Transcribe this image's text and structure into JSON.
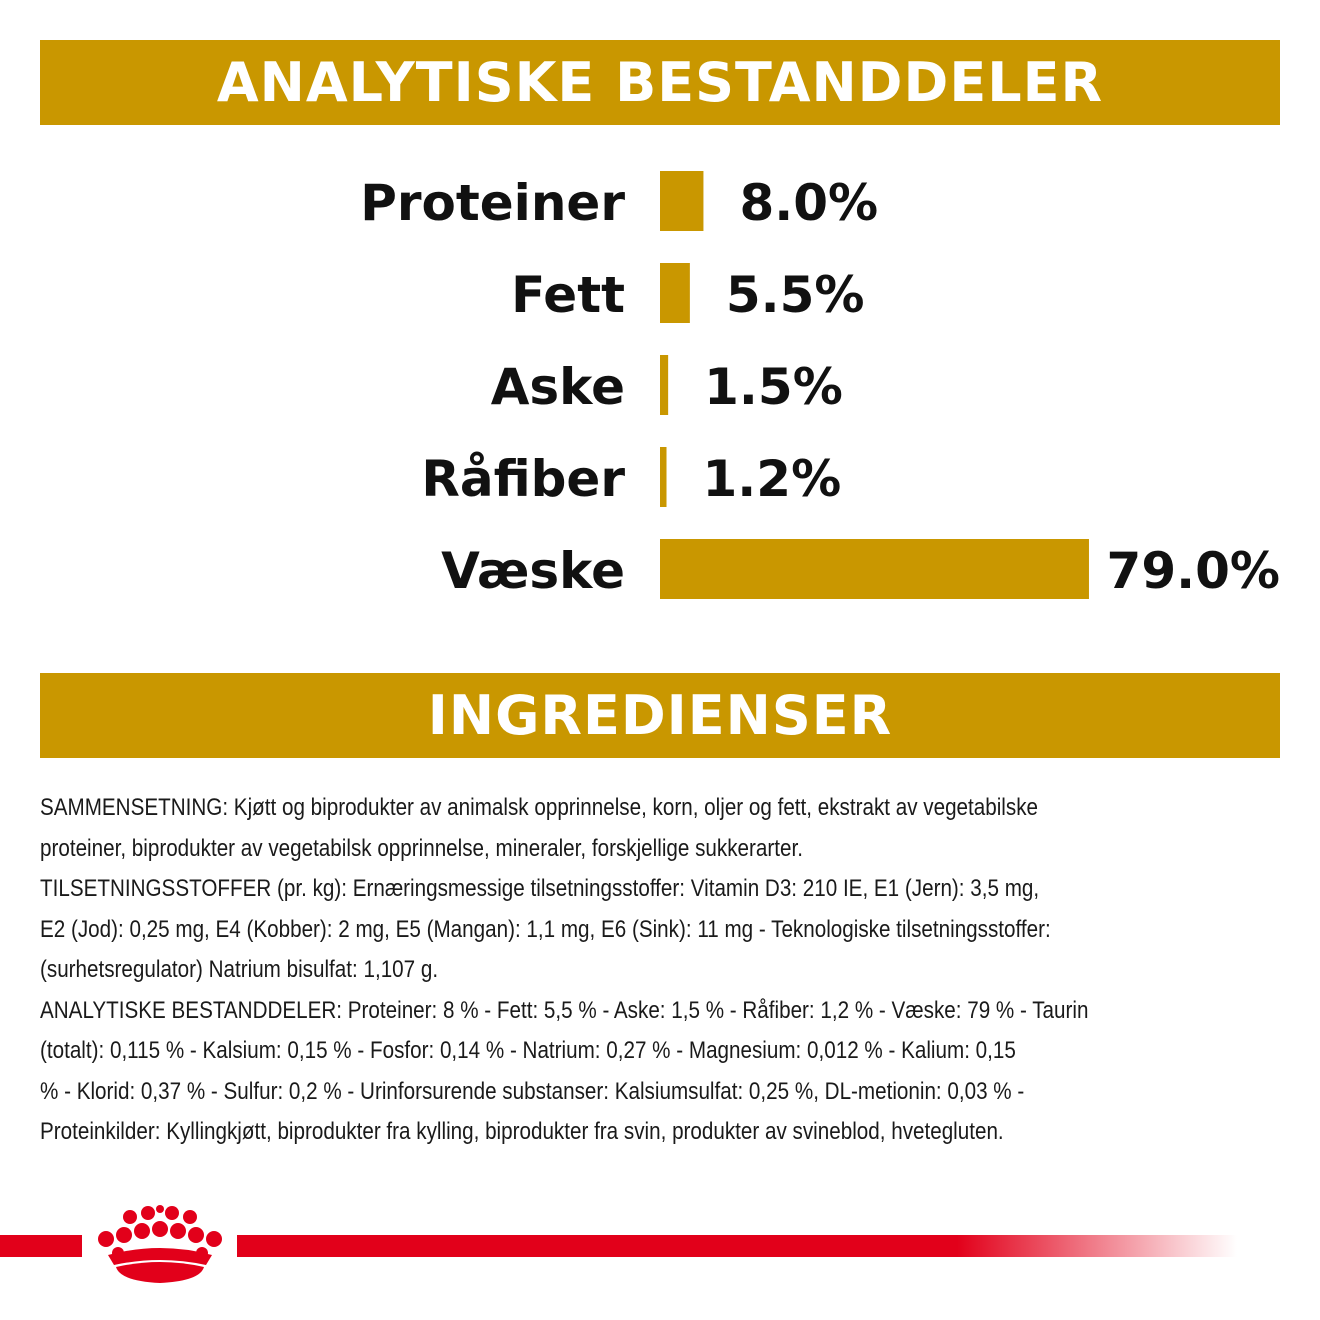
{
  "analysis_title": "ANALYTISKE BESTANDDELER",
  "ingredients_title": "INGREDIENSER",
  "chart_data": {
    "type": "bar",
    "orientation": "horizontal",
    "categories": [
      "Proteiner",
      "Fett",
      "Aske",
      "Råfiber",
      "Væske"
    ],
    "values": [
      8.0,
      5.5,
      1.5,
      1.2,
      79.0
    ],
    "value_labels": [
      "8.0%",
      "5.5%",
      "1.5%",
      "1.2%",
      "79.0%"
    ],
    "unit": "%",
    "bar_color": "#c99700",
    "grid": false
  },
  "ingredients": {
    "lines": [
      "SAMMENSETNING: Kjøtt og biprodukter av animalsk opprinnelse, korn, oljer og fett, ekstrakt av vegetabilske",
      "proteiner, biprodukter av vegetabilsk opprinnelse, mineraler, forskjellige sukkerarter.",
      "TILSETNINGSSTOFFER (pr. kg): Ernæringsmessige tilsetningsstoffer: Vitamin D3: 210 IE, E1 (Jern): 3,5 mg,",
      "E2 (Jod): 0,25 mg, E4 (Kobber): 2 mg, E5 (Mangan): 1,1 mg, E6 (Sink): 11 mg - Teknologiske tilsetningsstoffer:",
      "(surhetsregulator) Natrium bisulfat: 1,107 g.",
      "ANALYTISKE BESTANDDELER: Proteiner: 8 % - Fett: 5,5 % - Aske: 1,5 % - Råfiber: 1,2 % - Væske: 79 % - Taurin",
      "(totalt): 0,115 % - Kalsium: 0,15 % - Fosfor: 0,14 % - Natrium: 0,27 % - Magnesium: 0,012 % - Kalium: 0,15",
      "% - Klorid: 0,37 % - Sulfur: 0,2 % - Urinforsurende substanser: Kalsiumsulfat: 0,25 %, DL-metionin: 0,03 % -",
      "Proteinkilder: Kyllingkjøtt, biprodukter fra kylling, biprodukter fra svin, produkter av svineblod, hvetegluten."
    ]
  },
  "brand_colors": {
    "gold": "#c99700",
    "red": "#e2001a"
  },
  "logo_icon": "royal-canin-crown-icon"
}
